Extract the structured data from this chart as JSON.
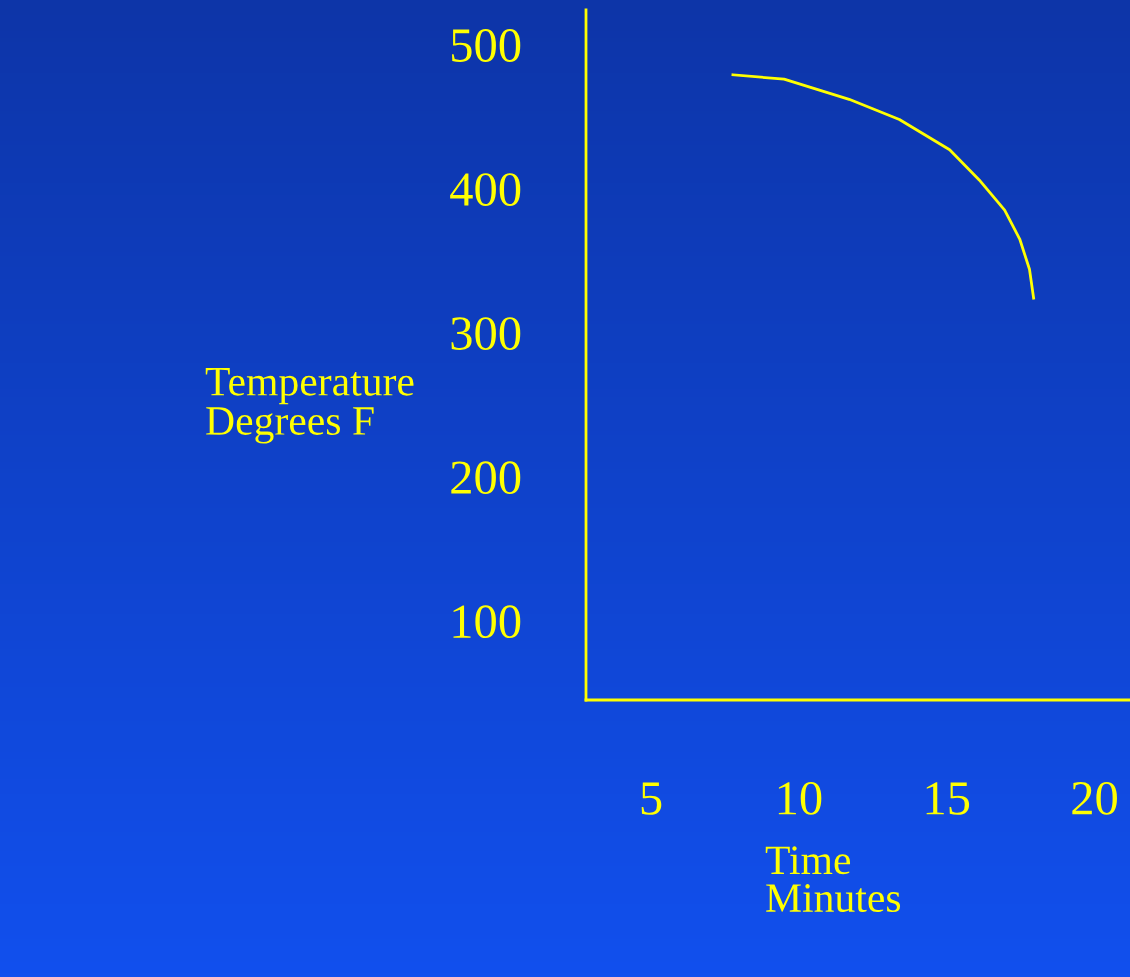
{
  "chart_data": {
    "type": "line",
    "xlabel": "Time\nMinutes",
    "ylabel": "Temperature\nDegrees F",
    "x": [
      7.77,
      9.5,
      11.7,
      13.4,
      15.1,
      16.1,
      16.96,
      17.47,
      17.8,
      17.94
    ],
    "series": [
      {
        "color": "#ffff00",
        "values": [
          479,
          476,
          462,
          448,
          427,
          406,
          385,
          365,
          344,
          324
        ]
      }
    ],
    "xlim": [
      2.8,
      21.2
    ],
    "ylim": [
      45,
      524
    ],
    "xticks": [
      5,
      10,
      15,
      20
    ],
    "yticks": [
      100,
      200,
      300,
      400,
      500
    ],
    "grid": false,
    "marker": "none",
    "line_style": "solid"
  }
}
